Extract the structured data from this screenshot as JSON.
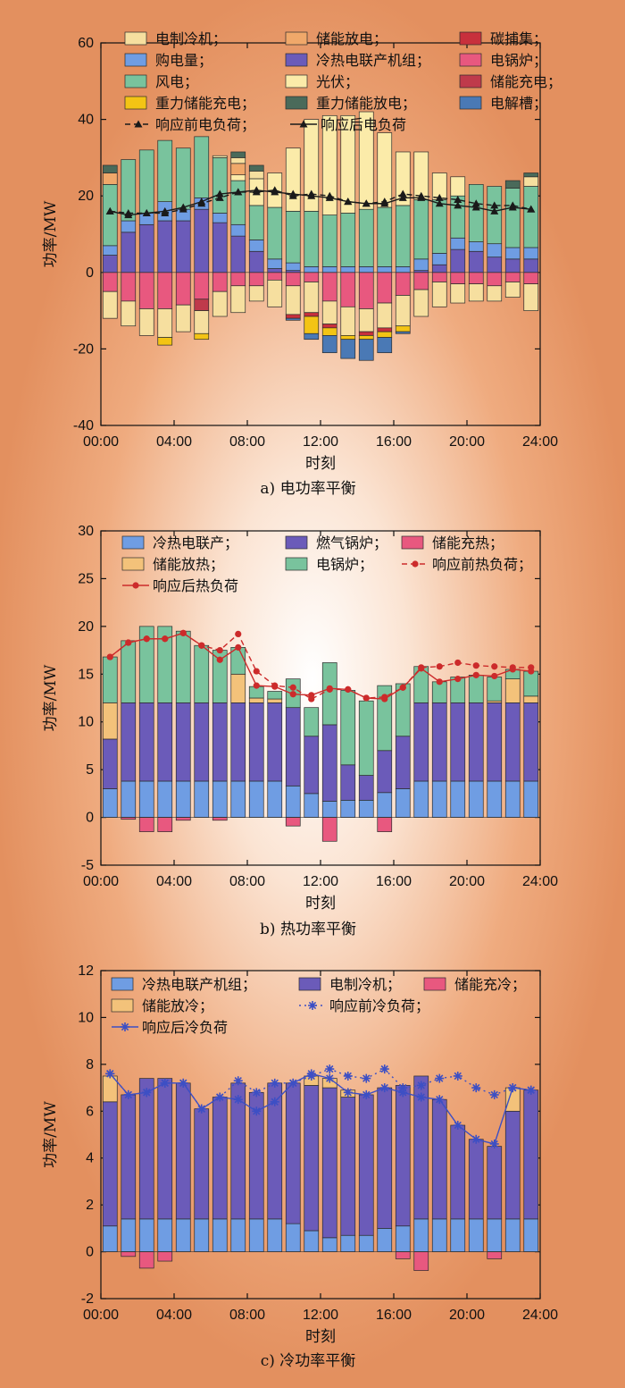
{
  "chart_data": [
    {
      "type": "bar",
      "caption": "a) 电功率平衡",
      "xlabel": "时刻",
      "ylabel": "功率/MW",
      "xlim": [
        0,
        24
      ],
      "ylim": [
        -40,
        60
      ],
      "yticks": [
        -40,
        -20,
        0,
        20,
        40,
        60
      ],
      "xticks": [
        "00:00",
        "04:00",
        "08:00",
        "12:00",
        "16:00",
        "20:00",
        "24:00"
      ],
      "legend": [
        "电制冷机；",
        "储能放电；",
        "碳捕集；",
        "购电量；",
        "冷热电联产机组；",
        "电锅炉；",
        "风电；",
        "光伏；",
        "储能充电；",
        "重力储能充电；",
        "重力储能放电；",
        "电解槽；",
        "响应前电负荷；",
        "响应后电负荷"
      ],
      "colors": {
        "电制冷机": "#f6df9f",
        "储能放电": "#f0a86a",
        "碳捕集": "#c8303c",
        "购电量": "#6f9de3",
        "冷热电联产机组": "#6b5bb9",
        "电锅炉": "#e8587f",
        "风电": "#79c39d",
        "光伏": "#fbeba9",
        "储能充电": "#bf3a4b",
        "重力储能充电": "#f3c414",
        "重力储能放电": "#4a6a5a",
        "电解槽": "#4a79b5",
        "line": "#1a1a1a"
      },
      "x": [
        0.5,
        1.5,
        2.5,
        3.5,
        4.5,
        5.5,
        6.5,
        7.5,
        8.5,
        9.5,
        10.5,
        11.5,
        12.5,
        13.5,
        14.5,
        15.5,
        16.5,
        17.5,
        18.5,
        19.5,
        20.5,
        21.5,
        22.5,
        23.5
      ],
      "positive_series": [
        {
          "key": "冷热电联产机组",
          "values": [
            4.5,
            10.5,
            12.5,
            13.5,
            13.5,
            16.5,
            13,
            9.5,
            5.5,
            1,
            0.5,
            0,
            0,
            0,
            0,
            0,
            0,
            0.5,
            2,
            6,
            5.5,
            4,
            3.5,
            3.5
          ]
        },
        {
          "key": "购电量",
          "values": [
            2.5,
            3,
            3,
            5,
            3,
            3,
            2.5,
            3,
            3,
            2.5,
            2,
            1.5,
            1.5,
            1.5,
            1.5,
            1.5,
            1.5,
            3,
            3,
            3,
            2.5,
            3.5,
            3,
            3
          ]
        },
        {
          "key": "风电",
          "values": [
            16,
            16,
            16.5,
            16,
            16,
            16,
            14.5,
            11.5,
            9,
            13.5,
            13.5,
            14.5,
            13.5,
            14,
            15,
            15.5,
            16,
            15.5,
            14,
            11,
            15,
            15,
            15.5,
            16
          ]
        },
        {
          "key": "光伏",
          "values": [
            0,
            0,
            0,
            0,
            0,
            0,
            0.5,
            1.5,
            7,
            9,
            16.5,
            24,
            26,
            25.5,
            25.5,
            19.5,
            14,
            12.5,
            7,
            5,
            0,
            0,
            0,
            0
          ]
        },
        {
          "key": "储能放电",
          "values": [
            3,
            0,
            0,
            0,
            0,
            0,
            0,
            3,
            0,
            0,
            0,
            0,
            0,
            0,
            0,
            0,
            0,
            0,
            0,
            0,
            0,
            0,
            0,
            0
          ]
        },
        {
          "key": "电制冷机",
          "values": [
            0,
            0,
            0,
            0,
            0,
            0,
            0,
            1.5,
            2,
            0,
            0,
            0,
            0,
            0,
            0,
            0,
            0,
            0,
            0,
            0,
            0,
            0,
            0,
            2.5
          ]
        },
        {
          "key": "重力储能放电",
          "values": [
            2,
            0,
            0,
            0,
            0,
            0,
            0,
            1.5,
            1.5,
            0,
            0,
            0,
            0,
            0,
            0,
            0,
            0,
            0,
            0,
            0,
            0,
            0,
            2,
            1
          ]
        }
      ],
      "negative_series": [
        {
          "key": "电锅炉",
          "values": [
            -5,
            -7.5,
            -9.5,
            -9.5,
            -8.5,
            -7,
            -5,
            -3.5,
            -3.5,
            -2,
            -3.5,
            -2.5,
            -7.5,
            -9,
            -9.5,
            -8,
            -6,
            -4.5,
            -2.5,
            -3,
            -3,
            -3.5,
            -2.5,
            -3
          ]
        },
        {
          "key": "储能充电",
          "values": [
            0,
            0,
            0,
            0,
            0,
            -3,
            0,
            0,
            0,
            0,
            0,
            0,
            0,
            0,
            0,
            0,
            0,
            0,
            0,
            0,
            0,
            0,
            0,
            0
          ]
        },
        {
          "key": "电制冷机",
          "values": [
            -7,
            -6.5,
            -7,
            -7.5,
            -7,
            -6,
            -6.5,
            -7,
            -4,
            -7,
            -7.5,
            -8,
            -6,
            -7.5,
            -6,
            -6.5,
            -8,
            -7,
            -6.5,
            -5,
            -4.5,
            -4,
            -4,
            -7
          ]
        },
        {
          "key": "碳捕集",
          "values": [
            0,
            0,
            0,
            0,
            0,
            0,
            0,
            0,
            0,
            0,
            -1,
            -1,
            -1,
            0,
            -1,
            -1,
            0,
            0,
            0,
            0,
            0,
            0,
            0,
            0
          ]
        },
        {
          "key": "重力储能充电",
          "values": [
            0,
            0,
            0,
            -2,
            0,
            -1.5,
            0,
            0,
            0,
            0,
            0,
            -4.5,
            -2,
            -1,
            -1,
            -1.5,
            -1.5,
            0,
            0,
            0,
            0,
            0,
            0,
            0
          ]
        },
        {
          "key": "电解槽",
          "values": [
            0,
            0,
            0,
            0,
            0,
            0,
            0,
            0,
            0,
            0,
            -0.5,
            -1.5,
            -4.5,
            -5,
            -5.5,
            -4,
            -0.5,
            0,
            0,
            0,
            0,
            0,
            0,
            0
          ]
        }
      ],
      "lines": [
        {
          "key": "响应前电负荷",
          "style": "dashed",
          "marker": "triangle",
          "values": [
            16,
            15.5,
            15.5,
            15.5,
            16.5,
            18,
            19.5,
            21,
            21,
            21.5,
            20,
            20.5,
            20,
            18.5,
            18,
            18.5,
            20.5,
            20,
            19.5,
            19,
            18,
            17.5,
            17.5,
            16.5
          ]
        },
        {
          "key": "响应后电负荷",
          "style": "solid",
          "marker": "triangle",
          "values": [
            16,
            15,
            15.5,
            16,
            17,
            18.5,
            20.5,
            21,
            21.5,
            21,
            20.5,
            20,
            19.5,
            18.5,
            18,
            18,
            19.5,
            19.5,
            18,
            17.5,
            17,
            16,
            17,
            16.5
          ]
        }
      ]
    },
    {
      "type": "bar",
      "caption": "b) 热功率平衡",
      "xlabel": "时刻",
      "ylabel": "功率/MW",
      "xlim": [
        0,
        24
      ],
      "ylim": [
        -5,
        30
      ],
      "yticks": [
        -5,
        0,
        5,
        10,
        15,
        20,
        25,
        30
      ],
      "xticks": [
        "00:00",
        "04:00",
        "08:00",
        "12:00",
        "16:00",
        "20:00",
        "24:00"
      ],
      "legend": [
        "冷热电联产；",
        "燃气锅炉；",
        "储能充热；",
        "储能放热；",
        "电锅炉；",
        "响应前热负荷；",
        "响应后热负荷"
      ],
      "colors": {
        "冷热电联产": "#6f9de3",
        "燃气锅炉": "#6b5bb9",
        "储能充热": "#e8587f",
        "储能放热": "#f3c27a",
        "电锅炉": "#79c39d",
        "line": "#cc2b2b"
      },
      "x": [
        0.5,
        1.5,
        2.5,
        3.5,
        4.5,
        5.5,
        6.5,
        7.5,
        8.5,
        9.5,
        10.5,
        11.5,
        12.5,
        13.5,
        14.5,
        15.5,
        16.5,
        17.5,
        18.5,
        19.5,
        20.5,
        21.5,
        22.5,
        23.5
      ],
      "positive_series": [
        {
          "key": "冷热电联产",
          "values": [
            3,
            3.8,
            3.8,
            3.8,
            3.8,
            3.8,
            3.8,
            3.8,
            3.8,
            3.8,
            3.3,
            2.5,
            1.7,
            1.8,
            1.8,
            2.6,
            3,
            3.8,
            3.8,
            3.8,
            3.8,
            3.8,
            3.8,
            3.8
          ]
        },
        {
          "key": "燃气锅炉",
          "values": [
            5.2,
            8.2,
            8.2,
            8.2,
            8.2,
            8.2,
            8.2,
            8.2,
            8.2,
            8.2,
            8.2,
            6,
            8,
            3.7,
            2.6,
            4.4,
            5.5,
            8.2,
            8.2,
            8.2,
            8.2,
            8.2,
            8.2,
            8.2
          ]
        },
        {
          "key": "储能放热",
          "values": [
            3.8,
            0,
            0,
            0,
            0,
            0,
            0,
            3,
            0.5,
            0.4,
            0,
            0,
            0,
            0,
            0,
            0,
            0,
            0,
            0,
            0,
            0,
            0.2,
            2.5,
            0.7
          ]
        },
        {
          "key": "电锅炉",
          "values": [
            4.8,
            6.5,
            8,
            8,
            7.5,
            6,
            5.5,
            2.8,
            1.2,
            0.8,
            3,
            3,
            6.5,
            7.8,
            7.8,
            6.8,
            5.5,
            3.8,
            2.2,
            2.7,
            2.9,
            2.5,
            1,
            2.6
          ]
        }
      ],
      "negative_series": [
        {
          "key": "储能充热",
          "values": [
            0,
            -0.2,
            -1.5,
            -1.5,
            -0.3,
            0,
            -0.3,
            0,
            0,
            0,
            -0.9,
            0,
            -2.5,
            0,
            0,
            -1.5,
            0,
            0,
            0,
            0,
            0,
            0,
            0,
            0
          ]
        }
      ],
      "lines": [
        {
          "key": "响应前热负荷",
          "style": "dashed",
          "marker": "circle",
          "values": [
            16.8,
            18.3,
            18.7,
            18.7,
            19.3,
            18,
            17.5,
            19.2,
            15.3,
            13.8,
            13.6,
            12.4,
            13.4,
            13.4,
            12.5,
            12.6,
            13.6,
            15.7,
            15.8,
            16.2,
            15.9,
            15.8,
            15.7,
            15.7
          ]
        },
        {
          "key": "响应后热负荷",
          "style": "solid",
          "marker": "circle",
          "values": [
            16.8,
            18.3,
            18.7,
            18.7,
            19.3,
            18,
            16.5,
            17.8,
            13.8,
            13.7,
            12.9,
            12.8,
            13.5,
            13.4,
            12.5,
            12.4,
            13.6,
            15.6,
            14.2,
            14.5,
            14.9,
            14.8,
            15.5,
            15.3
          ]
        }
      ]
    },
    {
      "type": "bar",
      "caption": "c) 冷功率平衡",
      "xlabel": "时刻",
      "ylabel": "功率/MW",
      "xlim": [
        0,
        24
      ],
      "ylim": [
        -2,
        12
      ],
      "yticks": [
        -2,
        0,
        2,
        4,
        6,
        8,
        10,
        12
      ],
      "xticks": [
        "00:00",
        "04:00",
        "08:00",
        "12:00",
        "16:00",
        "20:00",
        "24:00"
      ],
      "legend": [
        "冷热电联产机组；",
        "电制冷机；",
        "储能充冷；",
        "储能放冷；",
        "响应前冷负荷；",
        "响应后冷负荷"
      ],
      "colors": {
        "冷热电联产机组": "#6f9de3",
        "电制冷机": "#6b5bb9",
        "储能充冷": "#e8587f",
        "储能放冷": "#f3c27a",
        "line": "#3d4fc4"
      },
      "x": [
        0.5,
        1.5,
        2.5,
        3.5,
        4.5,
        5.5,
        6.5,
        7.5,
        8.5,
        9.5,
        10.5,
        11.5,
        12.5,
        13.5,
        14.5,
        15.5,
        16.5,
        17.5,
        18.5,
        19.5,
        20.5,
        21.5,
        22.5,
        23.5
      ],
      "positive_series": [
        {
          "key": "冷热电联产机组",
          "values": [
            1.1,
            1.4,
            1.4,
            1.4,
            1.4,
            1.4,
            1.4,
            1.4,
            1.4,
            1.4,
            1.2,
            0.9,
            0.6,
            0.7,
            0.7,
            1,
            1.1,
            1.4,
            1.4,
            1.4,
            1.4,
            1.4,
            1.4,
            1.4
          ]
        },
        {
          "key": "电制冷机",
          "values": [
            5.3,
            5.3,
            6,
            6,
            5.8,
            4.7,
            5.2,
            5.8,
            5.4,
            5.8,
            6,
            6.2,
            6.4,
            5.9,
            6,
            6,
            6,
            6.1,
            5.1,
            4,
            3.4,
            3.1,
            4.6,
            5.5
          ]
        },
        {
          "key": "储能放冷",
          "values": [
            1.1,
            0,
            0,
            0,
            0,
            0,
            0,
            0,
            0,
            0,
            0,
            0.4,
            0.4,
            0.3,
            0,
            0,
            0,
            0,
            0,
            0,
            0,
            0,
            1,
            0
          ]
        }
      ],
      "negative_series": [
        {
          "key": "储能充冷",
          "values": [
            0,
            -0.2,
            -0.7,
            -0.4,
            0,
            0,
            0,
            0,
            0,
            0,
            0,
            0,
            0,
            0,
            0,
            0,
            -0.3,
            -0.8,
            0,
            0,
            0,
            -0.3,
            0,
            0
          ]
        }
      ],
      "lines": [
        {
          "key": "响应前冷负荷",
          "style": "dotted",
          "marker": "star",
          "values": [
            7.6,
            6.7,
            6.8,
            7.2,
            7.2,
            6.1,
            6.6,
            7.3,
            6.8,
            7.2,
            7.2,
            7.5,
            7.8,
            7.5,
            7.4,
            7.8,
            7.0,
            7.1,
            7.4,
            7.5,
            7.0,
            6.7,
            7.0,
            6.9
          ]
        },
        {
          "key": "响应后冷负荷",
          "style": "solid",
          "marker": "star",
          "values": [
            7.6,
            6.7,
            6.8,
            7.2,
            7.2,
            6.1,
            6.6,
            6.5,
            6.0,
            6.4,
            7.2,
            7.6,
            7.4,
            6.8,
            6.7,
            7.0,
            6.8,
            6.6,
            6.5,
            5.4,
            4.8,
            4.6,
            7.0,
            6.9
          ]
        }
      ]
    }
  ]
}
